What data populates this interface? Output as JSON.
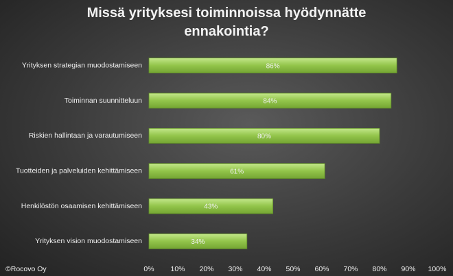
{
  "chart_data": {
    "type": "barh",
    "title": "Missä yrityksesi toiminnoissa hyödynnätte ennakointia?",
    "source": "©Rocovo Oy",
    "categories": [
      "Yrityksen strategian muodostamiseen",
      "Toiminnan suunnitteluun",
      "Riskien hallintaan ja varautumiseen",
      "Tuotteiden ja palveluiden kehittämiseen",
      "Henkilöstön osaamisen kehittämiseen",
      "Yrityksen vision muodostamiseen"
    ],
    "values": [
      86,
      84,
      80,
      61,
      43,
      34
    ],
    "value_labels": [
      "86%",
      "84%",
      "80%",
      "61%",
      "43%",
      "34%"
    ],
    "color": "#92c44a",
    "xlim": [
      0,
      100
    ],
    "xticks": [
      {
        "value": 0,
        "label": "0%"
      },
      {
        "value": 10,
        "label": "10%"
      },
      {
        "value": 20,
        "label": "20%"
      },
      {
        "value": 30,
        "label": "30%"
      },
      {
        "value": 40,
        "label": "40%"
      },
      {
        "value": 50,
        "label": "50%"
      },
      {
        "value": 60,
        "label": "60%"
      },
      {
        "value": 70,
        "label": "70%"
      },
      {
        "value": 80,
        "label": "80%"
      },
      {
        "value": 90,
        "label": "90%"
      },
      {
        "value": 100,
        "label": "100%"
      }
    ],
    "grid": false
  }
}
